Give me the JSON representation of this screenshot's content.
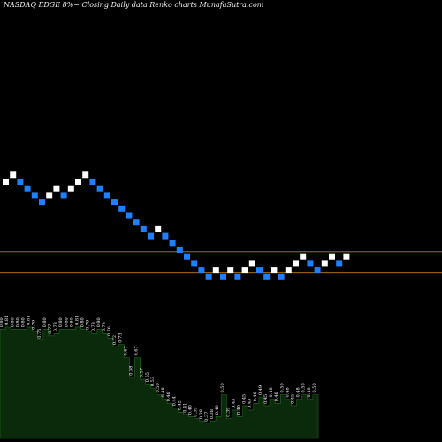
{
  "header": {
    "title": "NASDAQ EDGE 8%~ Closing Daily data Renko charts MunafaSutra.com"
  },
  "colors": {
    "background": "#000000",
    "up_brick": "#ffffff",
    "down_brick": "#1e7fff",
    "reference_line": "#c87a1e",
    "volume_fill": "#0b2a0b",
    "volume_edge": "#1f6a1f"
  },
  "chart_data": {
    "type": "renko",
    "title": "NASDAQ EDGE 8%~ Closing Daily data Renko charts MunafaSutra.com",
    "bricks": [
      {
        "level": 0,
        "dir": "up"
      },
      {
        "level": 1,
        "dir": "up"
      },
      {
        "level": 0,
        "dir": "down"
      },
      {
        "level": -1,
        "dir": "down"
      },
      {
        "level": -2,
        "dir": "down"
      },
      {
        "level": -3,
        "dir": "down"
      },
      {
        "level": -2,
        "dir": "up"
      },
      {
        "level": -1,
        "dir": "up"
      },
      {
        "level": -2,
        "dir": "down"
      },
      {
        "level": -1,
        "dir": "up"
      },
      {
        "level": 0,
        "dir": "up"
      },
      {
        "level": 1,
        "dir": "up"
      },
      {
        "level": 0,
        "dir": "down"
      },
      {
        "level": -1,
        "dir": "down"
      },
      {
        "level": -2,
        "dir": "down"
      },
      {
        "level": -3,
        "dir": "down"
      },
      {
        "level": -4,
        "dir": "down"
      },
      {
        "level": -5,
        "dir": "down"
      },
      {
        "level": -6,
        "dir": "down"
      },
      {
        "level": -7,
        "dir": "down"
      },
      {
        "level": -8,
        "dir": "down"
      },
      {
        "level": -7,
        "dir": "up"
      },
      {
        "level": -8,
        "dir": "down"
      },
      {
        "level": -9,
        "dir": "down"
      },
      {
        "level": -10,
        "dir": "down"
      },
      {
        "level": -11,
        "dir": "down"
      },
      {
        "level": -12,
        "dir": "down"
      },
      {
        "level": -13,
        "dir": "down"
      },
      {
        "level": -14,
        "dir": "down"
      },
      {
        "level": -13,
        "dir": "up"
      },
      {
        "level": -14,
        "dir": "down"
      },
      {
        "level": -13,
        "dir": "up"
      },
      {
        "level": -14,
        "dir": "down"
      },
      {
        "level": -13,
        "dir": "up"
      },
      {
        "level": -12,
        "dir": "up"
      },
      {
        "level": -13,
        "dir": "down"
      },
      {
        "level": -14,
        "dir": "down"
      },
      {
        "level": -13,
        "dir": "up"
      },
      {
        "level": -14,
        "dir": "down"
      },
      {
        "level": -13,
        "dir": "up"
      },
      {
        "level": -12,
        "dir": "up"
      },
      {
        "level": -11,
        "dir": "up"
      },
      {
        "level": -12,
        "dir": "down"
      },
      {
        "level": -13,
        "dir": "down"
      },
      {
        "level": -12,
        "dir": "up"
      },
      {
        "level": -11,
        "dir": "up"
      },
      {
        "level": -12,
        "dir": "down"
      },
      {
        "level": -11,
        "dir": "up"
      }
    ],
    "reference_levels": [
      -10.3,
      -13.4
    ],
    "volume_labels": [
      "0.80",
      "0.81",
      "0.80",
      "0.80",
      "0.80",
      "0.81",
      "0.79",
      "0.75",
      "0.80",
      "0.77",
      "0.78",
      "0.80",
      "0.80",
      "0.80",
      "0.81",
      "0.80",
      "0.79",
      "0.78",
      "0.80",
      "0.78",
      "0.76",
      "0.72",
      "0.73",
      "0.67",
      "0.58",
      "0.67",
      "0.57",
      "0.55",
      "0.53",
      "0.50",
      "0.48",
      "0.46",
      "0.44",
      "0.42",
      "0.41",
      "0.40",
      "0.39",
      "0.38",
      "0.37",
      "0.38",
      "0.40",
      "0.50",
      "0.39",
      "0.43",
      "0.40",
      "0.45",
      "0.43",
      "0.46",
      "0.49",
      "0.45",
      "0.48",
      "0.46",
      "0.50",
      "0.48",
      "0.45",
      "0.48",
      "0.50",
      "0.48",
      "0.50"
    ],
    "volume_values": [
      0.8,
      0.81,
      0.8,
      0.8,
      0.8,
      0.81,
      0.79,
      0.75,
      0.8,
      0.77,
      0.78,
      0.8,
      0.8,
      0.8,
      0.81,
      0.8,
      0.79,
      0.78,
      0.8,
      0.78,
      0.76,
      0.72,
      0.73,
      0.67,
      0.58,
      0.67,
      0.57,
      0.55,
      0.53,
      0.5,
      0.48,
      0.46,
      0.44,
      0.42,
      0.41,
      0.4,
      0.39,
      0.38,
      0.37,
      0.38,
      0.4,
      0.5,
      0.39,
      0.43,
      0.4,
      0.45,
      0.43,
      0.46,
      0.49,
      0.45,
      0.48,
      0.46,
      0.5,
      0.48,
      0.45,
      0.48,
      0.5,
      0.48,
      0.5
    ],
    "grid": false,
    "legend": "none"
  }
}
